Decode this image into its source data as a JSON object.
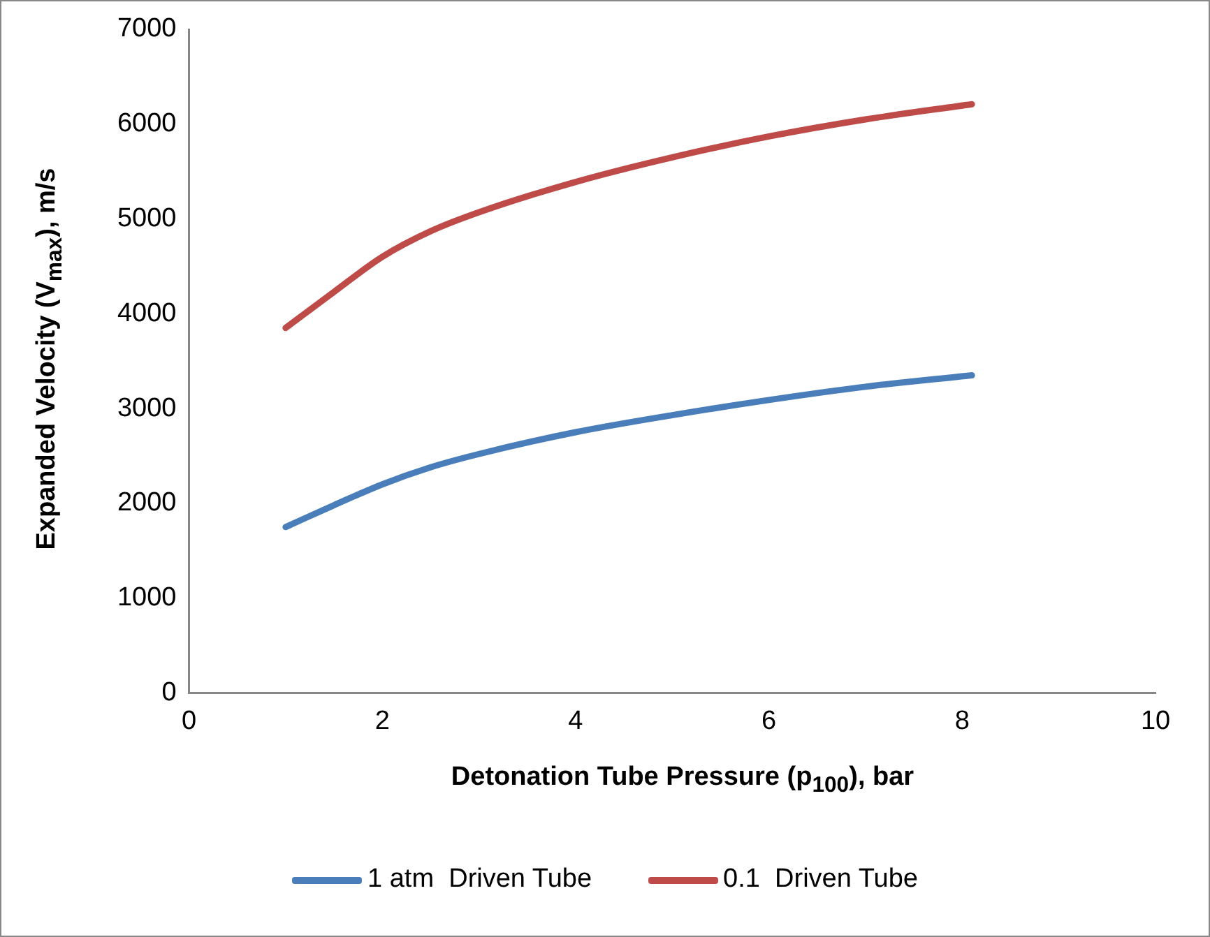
{
  "chart_data": {
    "type": "line",
    "xlabel": "Detonation Tube Pressure (p$_{100}$), bar",
    "ylabel": "Expanded Velocity (V$_{max}$), m/s",
    "x": [
      1,
      1.5,
      2,
      2.5,
      3,
      4,
      5,
      6,
      7,
      8.1
    ],
    "series": [
      {
        "name": "1 atm  Driven Tube",
        "color": "#4a7ebb",
        "values": [
          1750,
          1980,
          2200,
          2380,
          2520,
          2750,
          2930,
          3090,
          3230,
          3350
        ]
      },
      {
        "name": "0.1  Driven Tube",
        "color": "#be4b48",
        "values": [
          3850,
          4230,
          4600,
          4870,
          5070,
          5390,
          5650,
          5870,
          6050,
          6210
        ]
      }
    ],
    "xlim": [
      0,
      10
    ],
    "xticks": [
      0,
      2,
      4,
      6,
      8,
      10
    ],
    "ylim": [
      0,
      7000
    ],
    "yticks": [
      0,
      1000,
      2000,
      3000,
      4000,
      5000,
      6000,
      7000
    ],
    "grid": false,
    "legend": "bottom",
    "marker": "none",
    "line_style": "solid"
  }
}
